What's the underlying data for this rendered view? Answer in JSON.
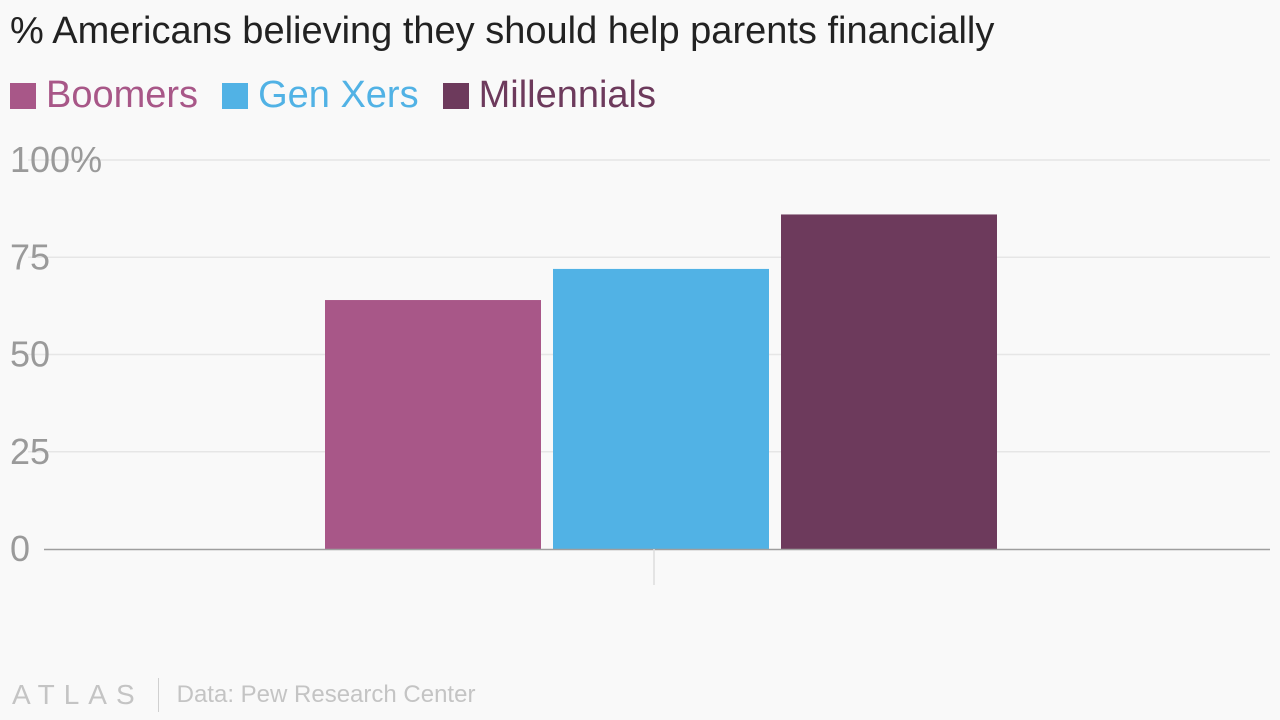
{
  "chart_data": {
    "type": "bar",
    "title": "% Americans believing they should help parents financially",
    "categories": [
      ""
    ],
    "series": [
      {
        "name": "Boomers",
        "color": "#a85788",
        "values": [
          64
        ]
      },
      {
        "name": "Gen Xers",
        "color": "#51b2e5",
        "values": [
          72
        ]
      },
      {
        "name": "Millennials",
        "color": "#6d3a5c",
        "values": [
          86
        ]
      }
    ],
    "ylim": [
      0,
      100
    ],
    "yticks": [
      {
        "value": 100,
        "label": "100%"
      },
      {
        "value": 75,
        "label": "75"
      },
      {
        "value": 50,
        "label": "50"
      },
      {
        "value": 25,
        "label": "25"
      },
      {
        "value": 0,
        "label": "0"
      }
    ],
    "grid": true,
    "legend": "top-left"
  },
  "footer": {
    "logo": "ATLAS",
    "source": "Data: Pew Research Center"
  }
}
